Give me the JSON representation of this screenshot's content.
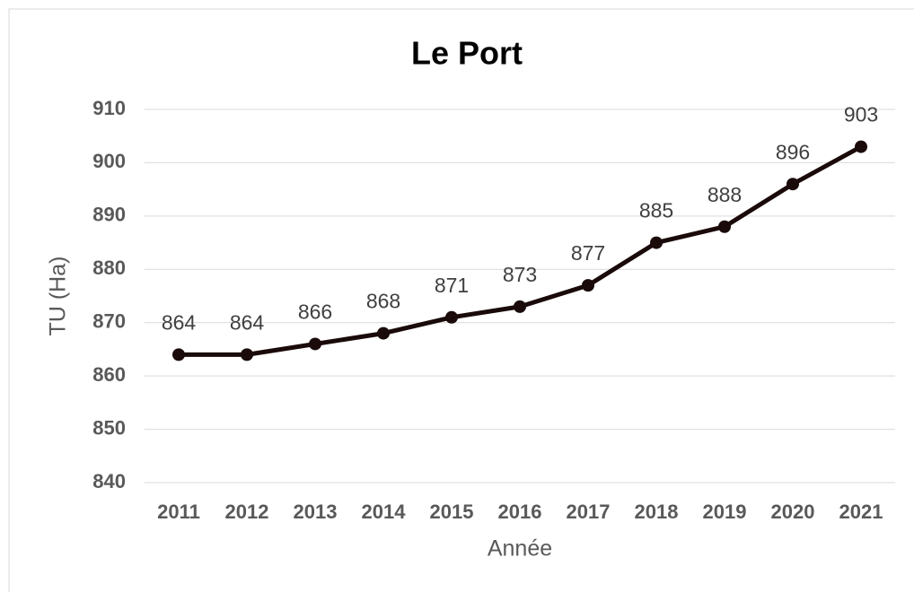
{
  "chart_data": {
    "type": "line",
    "title": "Le Port",
    "x_label": "Année",
    "y_label": "TU (Ha)",
    "categories": [
      "2011",
      "2012",
      "2013",
      "2014",
      "2015",
      "2016",
      "2017",
      "2018",
      "2019",
      "2020",
      "2021"
    ],
    "series": [
      {
        "name": "TU (Ha)",
        "color": "#1a0a0a",
        "values": [
          864,
          864,
          866,
          868,
          871,
          873,
          877,
          885,
          888,
          896,
          903
        ]
      }
    ],
    "ylim": [
      840,
      910
    ],
    "yticks": [
      840,
      850,
      860,
      870,
      880,
      890,
      900,
      910
    ],
    "grid": true
  }
}
